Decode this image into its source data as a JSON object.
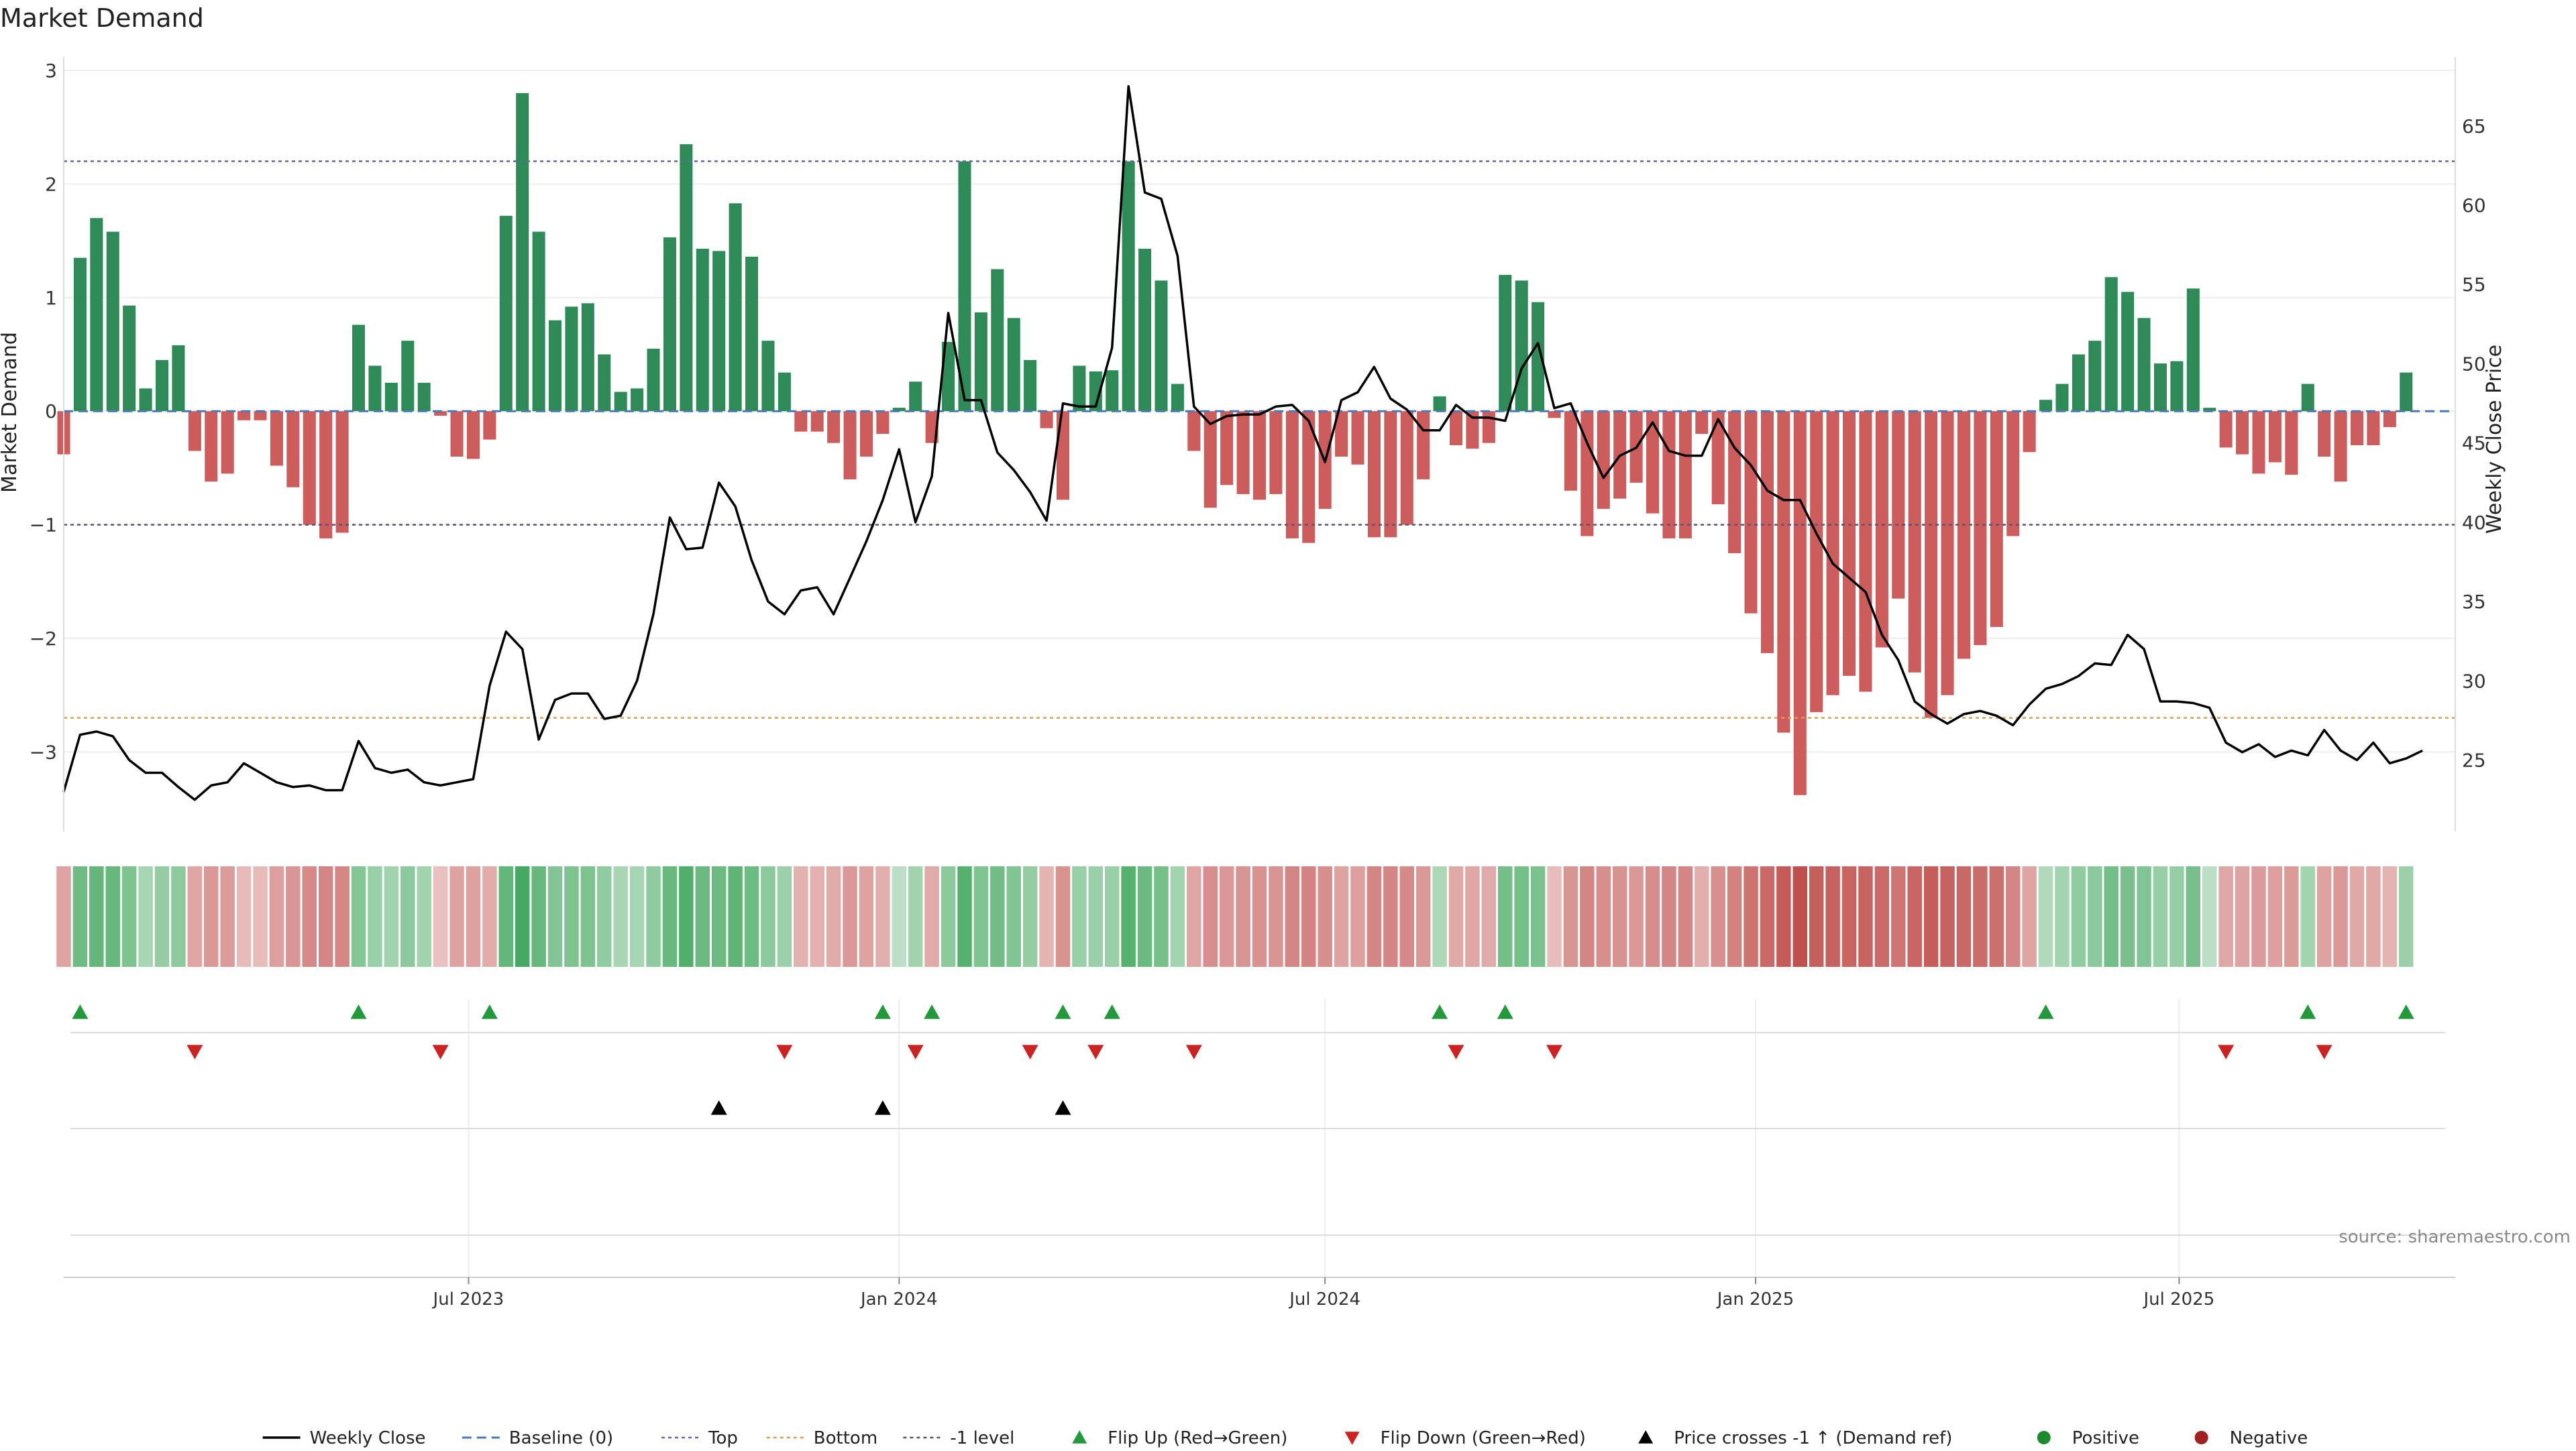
{
  "chart_data": {
    "type": "bar",
    "title": "Market Demand",
    "ylabel": "Market Demand",
    "y2label": "Weekly Close Price",
    "ylim": [
      -3.7,
      3.0
    ],
    "y2lim": [
      20.5,
      68.5
    ],
    "yticks": [
      3,
      2,
      1,
      0,
      -1,
      -2,
      -3
    ],
    "ytick_labels": [
      "3",
      "2",
      "1",
      "0",
      "−1",
      "−2",
      "−3"
    ],
    "y2ticks": [
      65,
      60,
      55,
      50,
      45,
      40,
      35,
      30,
      25
    ],
    "x_range": [
      "2023-01-09",
      "2025-10-27"
    ],
    "x_ticks": [
      {
        "date": "2023-07-01",
        "label": "Jul 2023"
      },
      {
        "date": "2024-01-01",
        "label": "Jan 2024"
      },
      {
        "date": "2024-07-01",
        "label": "Jul 2024"
      },
      {
        "date": "2025-01-01",
        "label": "Jan 2025"
      },
      {
        "date": "2025-07-01",
        "label": "Jul 2025"
      }
    ],
    "start_date": "2023-01-09",
    "interval_days": 7,
    "top_level": 2.2,
    "bottom_level": -2.7,
    "minus_one_level": -1,
    "demand": [
      -0.38,
      1.35,
      1.7,
      1.58,
      0.93,
      0.2,
      0.45,
      0.58,
      -0.35,
      -0.62,
      -0.55,
      -0.08,
      -0.08,
      -0.48,
      -0.67,
      -1.0,
      -1.12,
      -1.07,
      0.76,
      0.4,
      0.25,
      0.62,
      0.25,
      -0.04,
      -0.4,
      -0.42,
      -0.25,
      1.72,
      2.8,
      1.58,
      0.8,
      0.92,
      0.95,
      0.5,
      0.17,
      0.2,
      0.55,
      1.53,
      2.35,
      1.43,
      1.41,
      1.83,
      1.36,
      0.62,
      0.34,
      -0.18,
      -0.18,
      -0.28,
      -0.6,
      -0.4,
      -0.2,
      0.03,
      0.26,
      -0.28,
      0.61,
      2.2,
      0.87,
      1.25,
      0.82,
      0.45,
      -0.15,
      -0.78,
      0.4,
      0.35,
      0.36,
      2.2,
      1.43,
      1.15,
      0.24,
      -0.35,
      -0.85,
      -0.65,
      -0.73,
      -0.78,
      -0.73,
      -1.12,
      -1.16,
      -0.86,
      -0.4,
      -0.47,
      -1.11,
      -1.11,
      -1.0,
      -0.6,
      0.13,
      -0.3,
      -0.33,
      -0.28,
      1.2,
      1.15,
      0.96,
      -0.06,
      -0.7,
      -1.1,
      -0.86,
      -0.77,
      -0.63,
      -0.9,
      -1.12,
      -1.12,
      -0.2,
      -0.82,
      -1.25,
      -1.78,
      -2.13,
      -2.83,
      -3.38,
      -2.65,
      -2.5,
      -2.33,
      -2.47,
      -2.08,
      -1.65,
      -2.3,
      -2.7,
      -2.5,
      -2.18,
      -2.06,
      -1.9,
      -1.1,
      -0.36,
      0.1,
      0.24,
      0.5,
      0.62,
      1.18,
      1.05,
      0.82,
      0.42,
      0.44,
      1.08,
      0.03,
      -0.32,
      -0.38,
      -0.55,
      -0.45,
      -0.56,
      0.24,
      -0.4,
      -0.62,
      -0.3,
      -0.3,
      -0.14,
      0.34
    ],
    "price": [
      23.0,
      26.6,
      26.8,
      26.5,
      25.0,
      24.2,
      24.2,
      23.3,
      22.5,
      23.4,
      23.6,
      24.8,
      24.2,
      23.6,
      23.3,
      23.4,
      23.1,
      23.1,
      26.2,
      24.5,
      24.2,
      24.4,
      23.6,
      23.4,
      23.6,
      23.8,
      29.7,
      33.1,
      32.0,
      26.3,
      28.8,
      29.2,
      29.2,
      27.6,
      27.8,
      30.0,
      34.2,
      40.3,
      38.3,
      38.4,
      42.5,
      41.0,
      37.6,
      35.0,
      34.2,
      35.7,
      35.9,
      34.2,
      36.5,
      38.8,
      41.4,
      44.6,
      40.0,
      42.9,
      53.2,
      47.7,
      47.7,
      44.4,
      43.3,
      41.9,
      40.1,
      47.5,
      47.3,
      47.3,
      51.0,
      67.5,
      60.8,
      60.4,
      56.8,
      47.3,
      46.2,
      46.7,
      46.8,
      46.8,
      47.3,
      47.4,
      46.4,
      43.8,
      47.7,
      48.2,
      49.8,
      47.8,
      47.1,
      45.8,
      45.8,
      47.4,
      46.6,
      46.6,
      46.4,
      49.7,
      51.3,
      47.2,
      47.5,
      45.0,
      42.8,
      44.2,
      44.7,
      46.3,
      44.5,
      44.2,
      44.2,
      46.5,
      44.7,
      43.6,
      42.0,
      41.4,
      41.4,
      39.3,
      37.4,
      36.5,
      35.6,
      32.9,
      31.3,
      28.7,
      27.9,
      27.3,
      27.9,
      28.1,
      27.8,
      27.2,
      28.5,
      29.5,
      29.8,
      30.3,
      31.1,
      31.0,
      32.9,
      32.0,
      28.7,
      28.7,
      28.6,
      28.3,
      26.1,
      25.5,
      26.0,
      25.2,
      25.6,
      25.3,
      26.9,
      25.6,
      25.0,
      26.1,
      24.8,
      25.1,
      25.6
    ],
    "flip_up_idx": [
      1,
      18,
      26,
      50,
      53,
      61,
      64,
      84,
      88,
      121,
      137,
      143
    ],
    "flip_down_idx": [
      8,
      23,
      44,
      52,
      59,
      63,
      69,
      85,
      91,
      132,
      138
    ],
    "price_cross_idx": [
      40,
      50,
      61
    ],
    "colors": {
      "positive_bar": "#2e8b57",
      "negative_bar": "#cd5c5c",
      "price_line": "#000000",
      "baseline": "#4a7ab5",
      "top": "#6666aa",
      "bottom": "#e0a040",
      "minus_one": "#555577",
      "flip_up": "#22993a",
      "flip_down": "#cc2222",
      "cross": "#000000",
      "positive": "#1e8a2e",
      "negative": "#a02020"
    },
    "legend_position": "bottom-center",
    "legend": [
      {
        "key": "weekly_close",
        "label": "Weekly Close",
        "symbol": "line",
        "color": "#000000"
      },
      {
        "key": "baseline",
        "label": "Baseline (0)",
        "symbol": "dash",
        "color": "#4a7ab5"
      },
      {
        "key": "top",
        "label": "Top",
        "symbol": "dot",
        "color": "#6666aa"
      },
      {
        "key": "bottom",
        "label": "Bottom",
        "symbol": "dot",
        "color": "#e0a040"
      },
      {
        "key": "minus_one",
        "label": "-1 level",
        "symbol": "dot",
        "color": "#555577"
      },
      {
        "key": "flip_up",
        "label": "Flip Up (Red→Green)",
        "symbol": "tri-up",
        "color": "#22993a"
      },
      {
        "key": "flip_down",
        "label": "Flip Down (Green→Red)",
        "symbol": "tri-down",
        "color": "#cc2222"
      },
      {
        "key": "price_cross",
        "label": "Price crosses -1 ↑ (Demand ref)",
        "symbol": "tri-up",
        "color": "#000000"
      },
      {
        "key": "positive",
        "label": "Positive",
        "symbol": "circle",
        "color": "#1e8a2e"
      },
      {
        "key": "negative",
        "label": "Negative",
        "symbol": "circle",
        "color": "#a02020"
      }
    ],
    "source": "source: sharemaestro.com"
  }
}
